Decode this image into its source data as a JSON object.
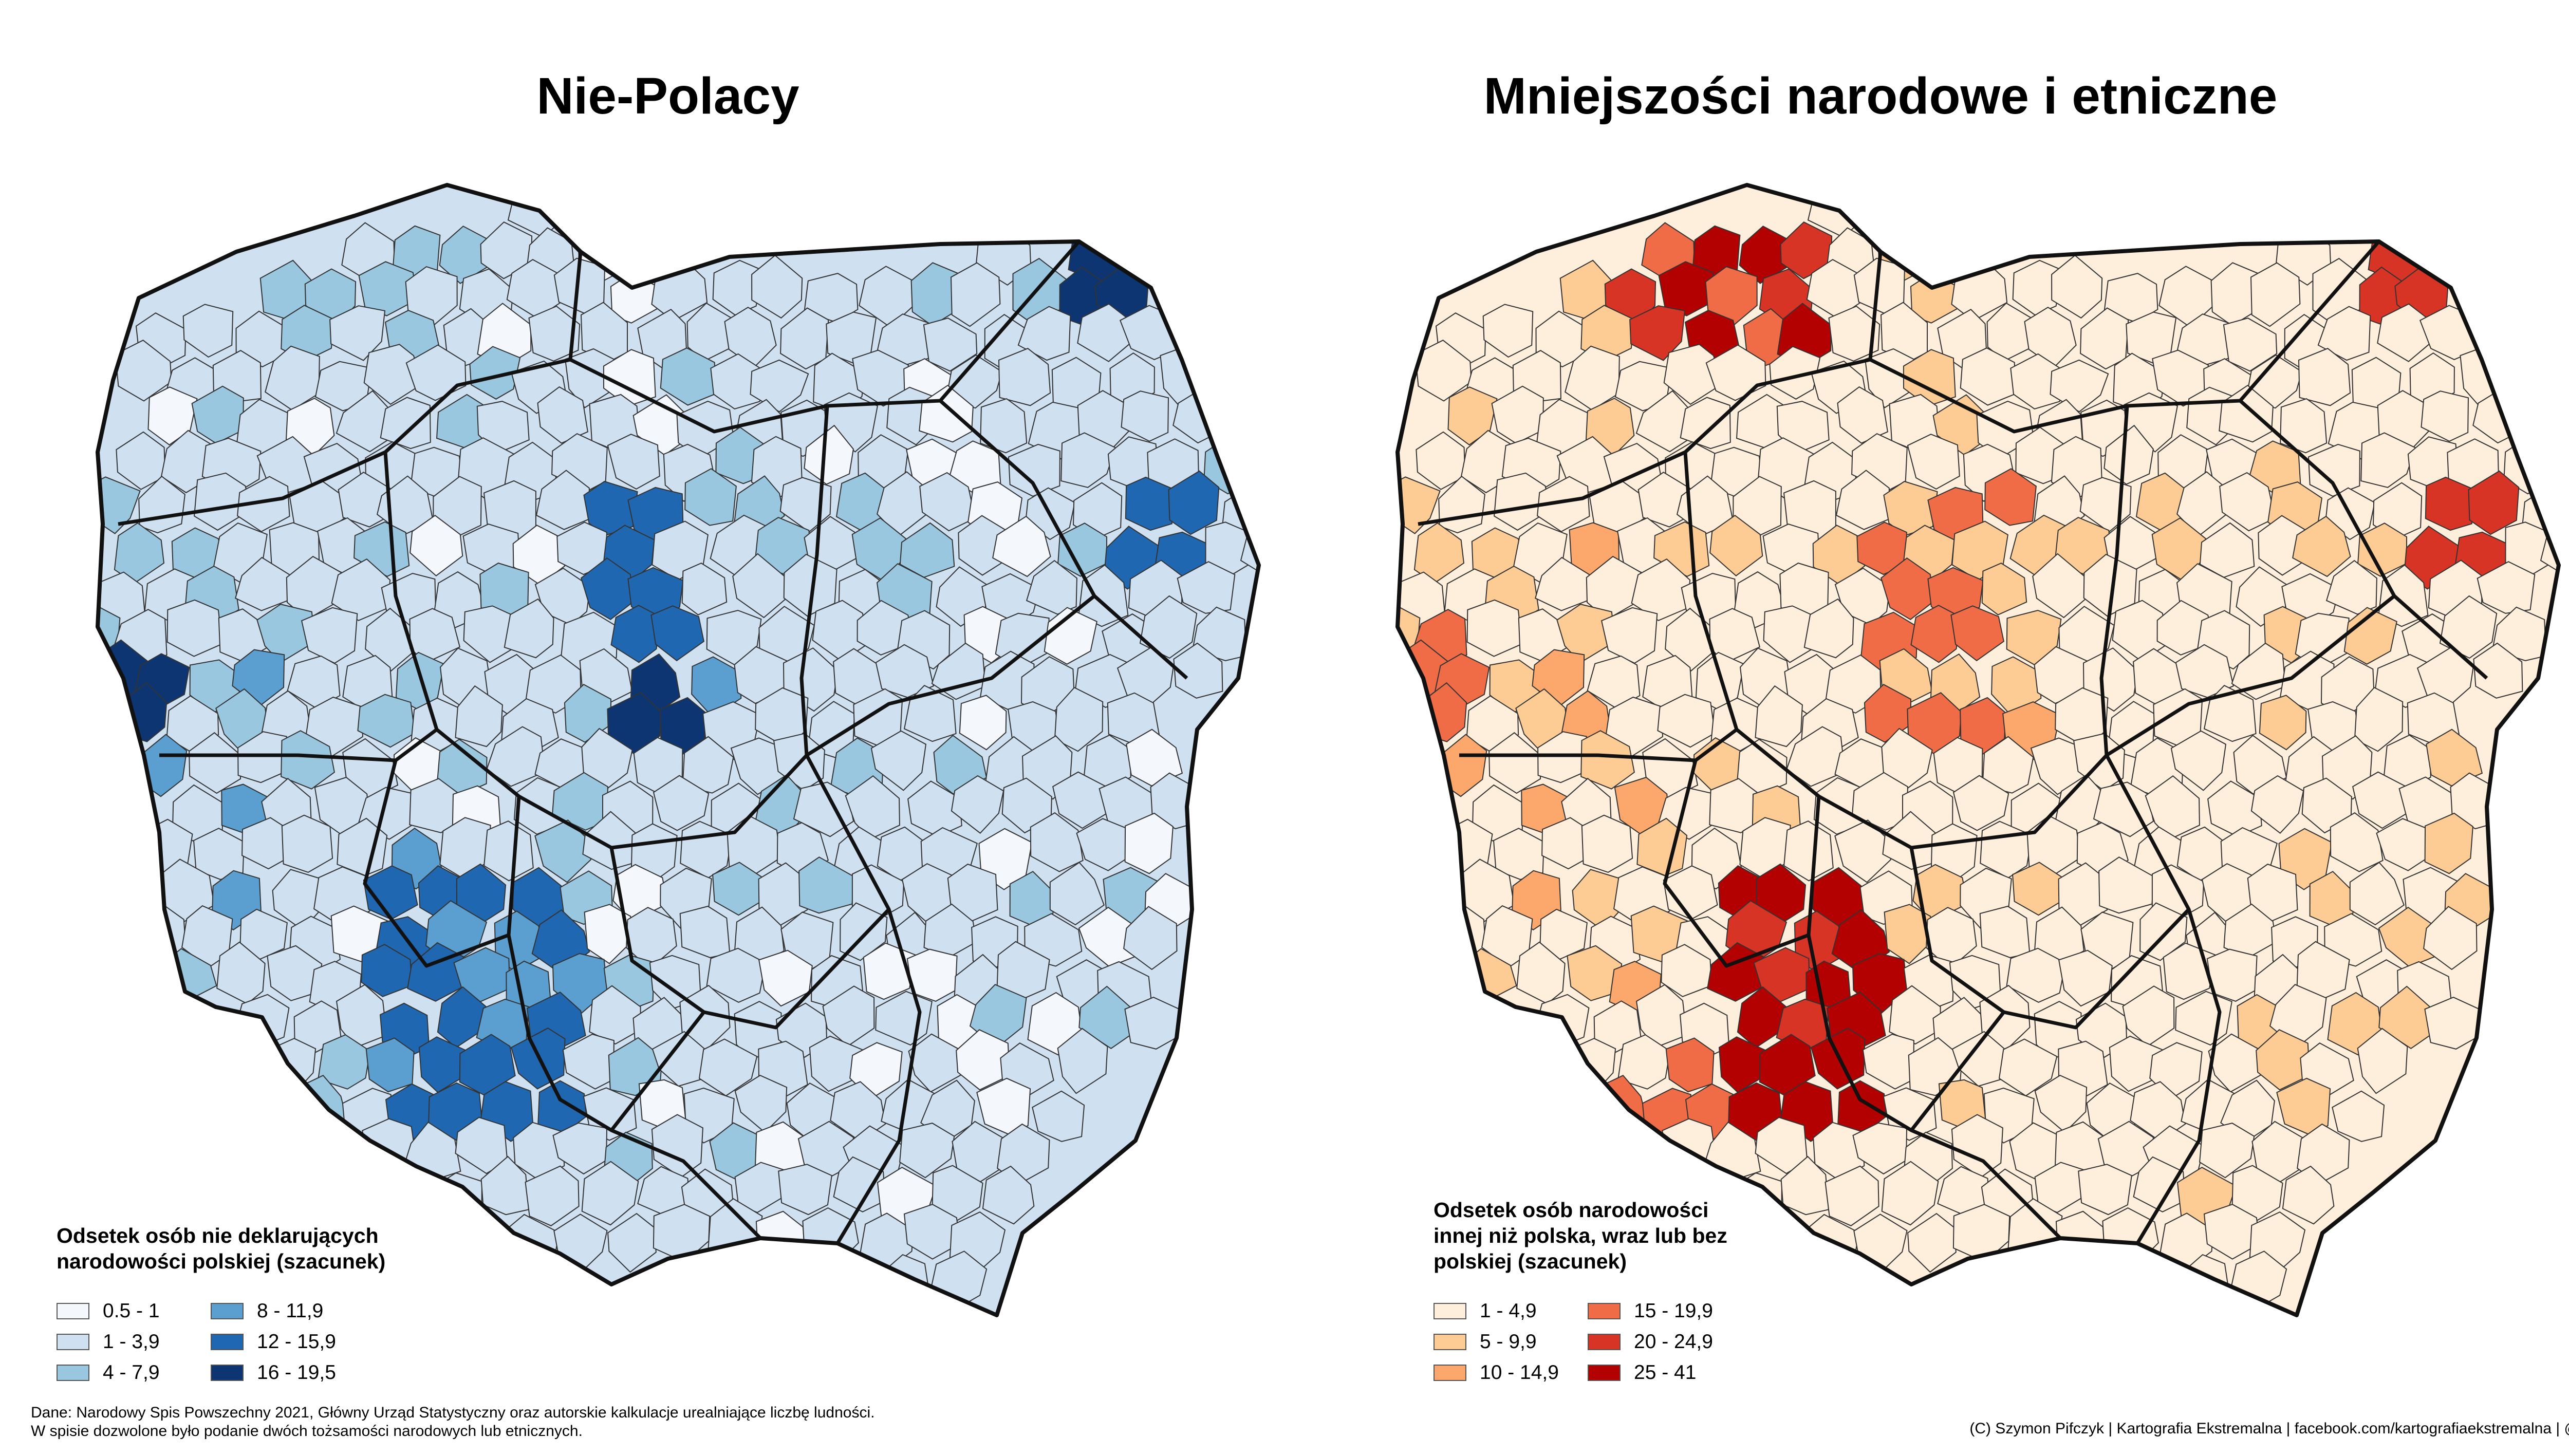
{
  "maps": [
    {
      "title": "Nie-Polacy",
      "legend_title": "Odsetek osób nie deklarujących\nnarodowości polskiej (szacunek)",
      "classes": [
        {
          "label": "0.5 - 1",
          "color": "#f4f8fd"
        },
        {
          "label": "1 - 3,9",
          "color": "#cfe0f1"
        },
        {
          "label": "4 - 7,9",
          "color": "#9ac7e0"
        },
        {
          "label": "8 - 11,9",
          "color": "#5b9fd0"
        },
        {
          "label": "12 - 15,9",
          "color": "#2067b1"
        },
        {
          "label": "16 - 19,5",
          "color": "#0d3572"
        }
      ]
    },
    {
      "title": "Mniejszości narodowe i etniczne",
      "legend_title": "Odsetek osób narodowości\ninnej niż polska, wraz lub bez\npolskiej (szacunek)",
      "classes": [
        {
          "label": "1 - 4,9",
          "color": "#feeedc"
        },
        {
          "label": "5 - 9,9",
          "color": "#fdcc95"
        },
        {
          "label": "10 - 14,9",
          "color": "#fca86d"
        },
        {
          "label": "15 - 19,9",
          "color": "#f06c47"
        },
        {
          "label": "20 - 24,9",
          "color": "#d83425"
        },
        {
          "label": "25 - 41",
          "color": "#b30000"
        }
      ]
    }
  ],
  "footer": {
    "source_line1": "Dane: Narodowy Spis Powszechny 2021, Główny Urząd Statystyczny oraz autorskie kalkulacje urealniające liczbę ludności.",
    "source_line2": "W spisie dozwolone było podanie dwóch tożsamości narodowych lub etnicznych.",
    "credit": "(C) Szymon Pifczyk | Kartografia Ekstremalna | facebook.com/kartografiaekstremalna | @sheemawn"
  }
}
